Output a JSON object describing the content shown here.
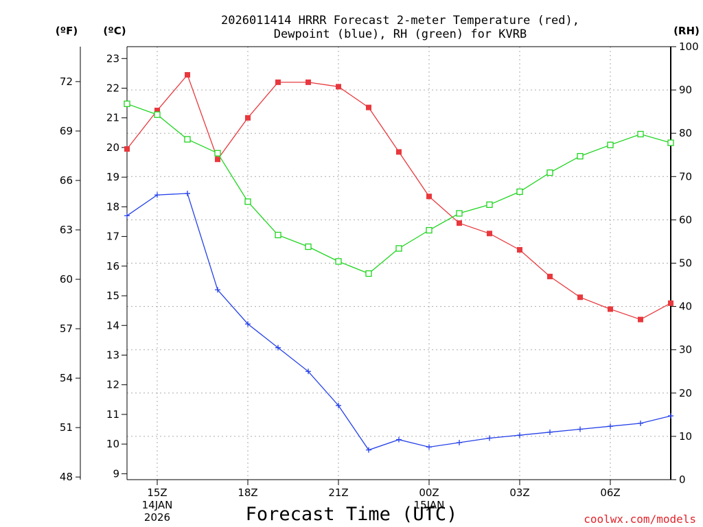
{
  "chart_data": {
    "type": "line",
    "title_line1": "2026011414 HRRR Forecast 2-meter Temperature (red),",
    "title_line2": "Dewpoint (blue), RH (green) for KVRB",
    "xlabel": "Forecast Time (UTC)",
    "credit": "coolwx.com/models",
    "unit_f": "(ºF)",
    "unit_c": "(ºC)",
    "unit_rh": "(RH)",
    "hours": [
      14,
      15,
      16,
      17,
      18,
      19,
      20,
      21,
      22,
      23,
      24,
      25,
      26,
      27,
      28,
      29,
      30,
      31,
      32
    ],
    "x_ticks": [
      {
        "hour": 15,
        "label": "15Z",
        "sub1": "14JAN",
        "sub2": "2026"
      },
      {
        "hour": 18,
        "label": "18Z",
        "sub1": "",
        "sub2": ""
      },
      {
        "hour": 21,
        "label": "21Z",
        "sub1": "",
        "sub2": ""
      },
      {
        "hour": 24,
        "label": "00Z",
        "sub1": "15JAN",
        "sub2": ""
      },
      {
        "hour": 27,
        "label": "03Z",
        "sub1": "",
        "sub2": ""
      },
      {
        "hour": 30,
        "label": "06Z",
        "sub1": "",
        "sub2": ""
      }
    ],
    "ylim_c": [
      8.8,
      23.4
    ],
    "ylim_rh": [
      0,
      100
    ],
    "y_ticks_c": [
      "9",
      "10",
      "11",
      "12",
      "13",
      "14",
      "15",
      "16",
      "17",
      "18",
      "19",
      "20",
      "21",
      "22",
      "23"
    ],
    "y_ticks_f": [
      "48",
      "51",
      "54",
      "57",
      "60",
      "63",
      "66",
      "69",
      "72"
    ],
    "y_ticks_rh": [
      "0",
      "10",
      "20",
      "30",
      "40",
      "50",
      "60",
      "70",
      "80",
      "90",
      "100"
    ],
    "series": [
      {
        "name": "Temperature",
        "color": "#e8383d",
        "marker": "filled-square",
        "values": [
          19.95,
          21.25,
          22.45,
          19.6,
          21.0,
          22.2,
          22.2,
          22.05,
          21.35,
          19.85,
          18.35,
          17.45,
          17.1,
          16.55,
          15.65,
          14.95,
          14.55,
          14.2,
          14.75
        ]
      },
      {
        "name": "Dewpoint",
        "color": "#2440e8",
        "marker": "plus",
        "values": [
          17.7,
          18.4,
          18.45,
          15.2,
          14.05,
          13.25,
          12.45,
          11.3,
          9.8,
          10.15,
          9.9,
          10.05,
          10.2,
          10.3,
          10.4,
          10.5,
          10.6,
          10.7,
          10.95
        ]
      },
      {
        "name": "RH",
        "color": "#1ed41e",
        "marker": "open-square",
        "axis": "rh",
        "values": [
          86.8,
          84.3,
          78.6,
          75.4,
          64.2,
          56.5,
          53.8,
          50.4,
          47.6,
          53.4,
          57.6,
          61.5,
          63.5,
          66.5,
          70.9,
          74.7,
          77.3,
          79.8,
          77.8
        ]
      }
    ]
  }
}
